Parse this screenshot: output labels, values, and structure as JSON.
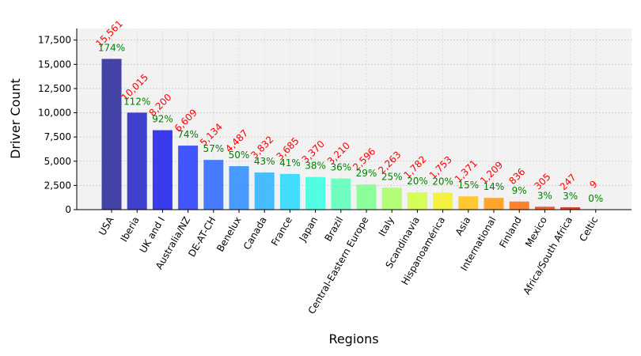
{
  "chart_data": {
    "type": "bar",
    "xlabel": "Regions",
    "ylabel": "Driver Count",
    "ylim": [
      0,
      18700
    ],
    "yticks": [
      0,
      2500,
      5000,
      7500,
      10000,
      12500,
      15000,
      17500
    ],
    "ytick_labels": [
      "0",
      "2,500",
      "5,000",
      "7,500",
      "10,000",
      "12,500",
      "15,000",
      "17,500"
    ],
    "grid": true,
    "categories": [
      "USA",
      "Iberia",
      "UK and I",
      "Australia/NZ",
      "DE-AT-CH",
      "Benelux",
      "Canada",
      "France",
      "Japan",
      "Brazil",
      "Central-Eastern Europe",
      "Italy",
      "Scandinavia",
      "Hispanoamérica",
      "Asia",
      "International",
      "Finland",
      "Mexico",
      "Africa/South Africa",
      "Celtic"
    ],
    "values": [
      15561,
      10015,
      8200,
      6609,
      5134,
      4487,
      3832,
      3685,
      3370,
      3210,
      2596,
      2263,
      1782,
      1753,
      1371,
      1209,
      836,
      305,
      247,
      9
    ],
    "value_labels": [
      "15,561",
      "10,015",
      "8,200",
      "6,609",
      "5,134",
      "4,487",
      "3,832",
      "3,685",
      "3,370",
      "3,210",
      "2,596",
      "2,263",
      "1,782",
      "1,753",
      "1,371",
      "1,209",
      "836",
      "305",
      "247",
      "9"
    ],
    "percent_labels": [
      "174%",
      "112%",
      "92%",
      "74%",
      "57%",
      "50%",
      "43%",
      "41%",
      "38%",
      "36%",
      "29%",
      "25%",
      "20%",
      "20%",
      "15%",
      "14%",
      "9%",
      "3%",
      "3%",
      "0%"
    ],
    "colors": [
      "#2a2a9a",
      "#2727c8",
      "#2020ee",
      "#2a40ff",
      "#2f6aff",
      "#2f8eff",
      "#2fb4ff",
      "#28d8ff",
      "#3affe0",
      "#5cffb8",
      "#80ff8f",
      "#a8ff66",
      "#d0ff42",
      "#f4f02a",
      "#ffc21a",
      "#ff9b14",
      "#ff7210",
      "#ee4a10",
      "#d42a10",
      "#b01010"
    ],
    "value_label_color": "#ff0000",
    "percent_label_color": "#008000",
    "plot_background": "#f2f2f2"
  }
}
